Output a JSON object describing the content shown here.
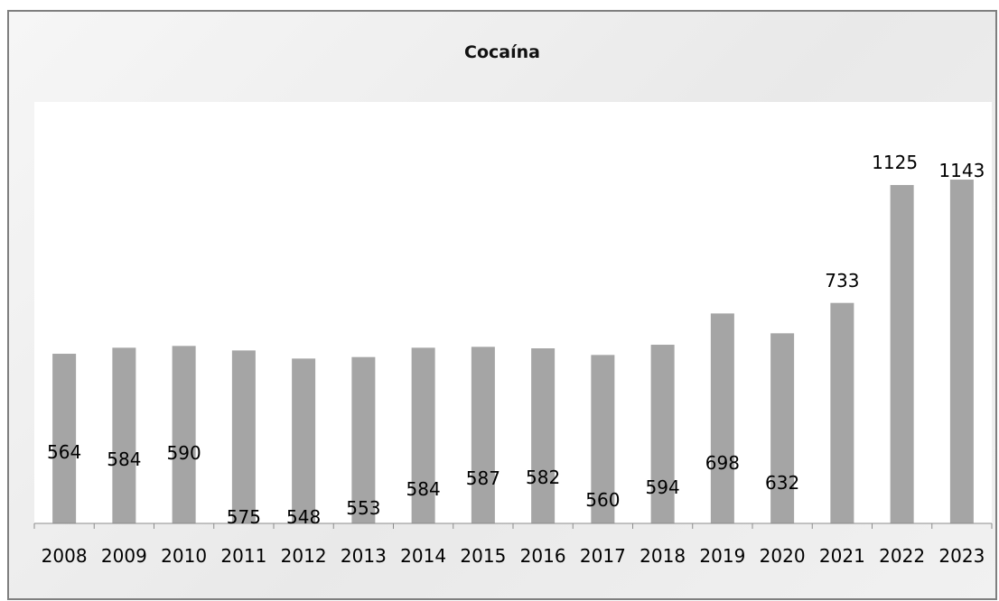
{
  "chart_data": {
    "type": "bar",
    "title": "Cocaína",
    "xlabel": "",
    "ylabel": "",
    "categories": [
      "2008",
      "2009",
      "2010",
      "2011",
      "2012",
      "2013",
      "2014",
      "2015",
      "2016",
      "2017",
      "2018",
      "2019",
      "2020",
      "2021",
      "2022",
      "2023"
    ],
    "values": [
      564,
      584,
      590,
      575,
      548,
      553,
      584,
      587,
      582,
      560,
      594,
      698,
      632,
      733,
      1125,
      1143
    ],
    "data_labels": [
      "564",
      "584",
      "590",
      "575",
      "548",
      "553",
      "584",
      "587",
      "582",
      "560",
      "594",
      "698",
      "632",
      "733",
      "1125",
      "1143"
    ],
    "ylim": [
      0,
      1400
    ],
    "grid": false,
    "legend": "none",
    "colors": {
      "bar": "#a5a5a5",
      "frame": "#7f7f7f"
    }
  }
}
